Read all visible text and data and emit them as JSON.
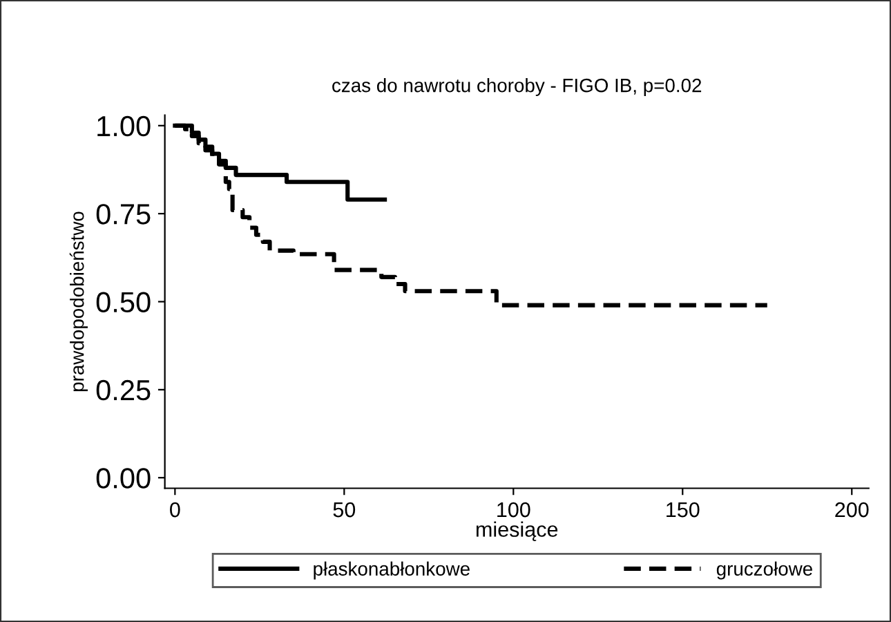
{
  "chart_data": {
    "type": "step",
    "title": "czas do nawrotu choroby - FIGO IB, p=0.02",
    "xlabel": "miesiące",
    "ylabel": "prawdopodobieństwo",
    "xlim": [
      -3,
      205
    ],
    "ylim": [
      -0.03,
      1.03
    ],
    "xticks": [
      0,
      50,
      100,
      150,
      200
    ],
    "yticks": [
      {
        "value": 0,
        "label": "0.00"
      },
      {
        "value": 0.25,
        "label": "0.25"
      },
      {
        "value": 0.5,
        "label": "0.50"
      },
      {
        "value": 0.75,
        "label": "0.75"
      },
      {
        "value": 1,
        "label": "1.00"
      }
    ],
    "grid": false,
    "legend": "bottom",
    "marker": "none",
    "series": [
      {
        "name": "płaskonabłonkowe",
        "color": "#000000",
        "line_style": "solid",
        "x": [
          0,
          5,
          7,
          9,
          11,
          13,
          15,
          18,
          33,
          51,
          62
        ],
        "values": [
          1.0,
          0.98,
          0.96,
          0.94,
          0.92,
          0.9,
          0.88,
          0.86,
          0.84,
          0.79,
          0.79
        ]
      },
      {
        "name": "gruczołowe",
        "color": "#000000",
        "line_style": "dashed",
        "x": [
          0,
          3,
          5,
          7,
          9,
          11,
          13,
          15,
          16,
          17,
          20,
          22,
          24,
          26,
          28,
          35,
          47,
          61,
          65,
          68,
          95,
          175
        ],
        "values": [
          1.0,
          0.99,
          0.97,
          0.95,
          0.93,
          0.91,
          0.89,
          0.84,
          0.82,
          0.76,
          0.74,
          0.71,
          0.69,
          0.67,
          0.645,
          0.635,
          0.59,
          0.57,
          0.55,
          0.53,
          0.49,
          0.49
        ]
      }
    ]
  }
}
